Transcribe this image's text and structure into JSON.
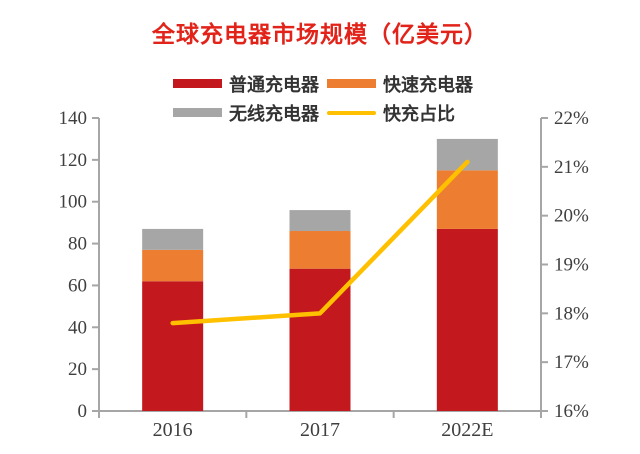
{
  "title": "全球充电器市场规模（亿美元）",
  "colors": {
    "title_red": "#E2231A",
    "bar_red": "#C3181E",
    "bar_orange": "#ED7D31",
    "bar_gray": "#A6A6A6",
    "line_yellow": "#FFC000",
    "axis_line": "#A6A6A6",
    "tick_text": "#3F3F3F",
    "legend_text": "#333333"
  },
  "legend": [
    {
      "key": "ordinary-charger",
      "label": "普通充电器",
      "swatch": "bar",
      "color": "#C3181E"
    },
    {
      "key": "fast-charger",
      "label": "快速充电器",
      "swatch": "bar",
      "color": "#ED7D31"
    },
    {
      "key": "wireless-charger",
      "label": "无线充电器",
      "swatch": "bar",
      "color": "#A6A6A6"
    },
    {
      "key": "fast-charge-share",
      "label": "快充占比",
      "swatch": "line",
      "color": "#FFC000"
    }
  ],
  "chart_data": {
    "type": "bar",
    "subtype": "stacked-columns-with-secondary-axis-line",
    "title": "全球充电器市场规模（亿美元）",
    "categories": [
      "2016",
      "2017",
      "2022E"
    ],
    "series": [
      {
        "key": "ordinary-charger",
        "name": "普通充电器",
        "type": "bar",
        "axis": "left",
        "color": "#C3181E",
        "values": [
          62,
          68,
          87
        ]
      },
      {
        "key": "fast-charger",
        "name": "快速充电器",
        "type": "bar",
        "axis": "left",
        "color": "#ED7D31",
        "values": [
          15,
          18,
          28
        ]
      },
      {
        "key": "wireless-charger",
        "name": "无线充电器",
        "type": "bar",
        "axis": "left",
        "color": "#A6A6A6",
        "values": [
          10,
          10,
          15
        ]
      },
      {
        "key": "fast-charge-share",
        "name": "快充占比",
        "type": "line",
        "axis": "right",
        "color": "#FFC000",
        "values": [
          17.8,
          18.0,
          21.1
        ]
      }
    ],
    "stacked_totals": [
      87,
      96,
      130
    ],
    "left_axis": {
      "min": 0,
      "max": 140,
      "step": 20,
      "ticks": [
        "0",
        "20",
        "40",
        "60",
        "80",
        "100",
        "120",
        "140"
      ]
    },
    "right_axis": {
      "min": 16,
      "max": 22,
      "step": 1,
      "ticks": [
        "16%",
        "17%",
        "18%",
        "19%",
        "20%",
        "21%",
        "22%"
      ]
    },
    "grid": false,
    "legend_position": "top"
  }
}
